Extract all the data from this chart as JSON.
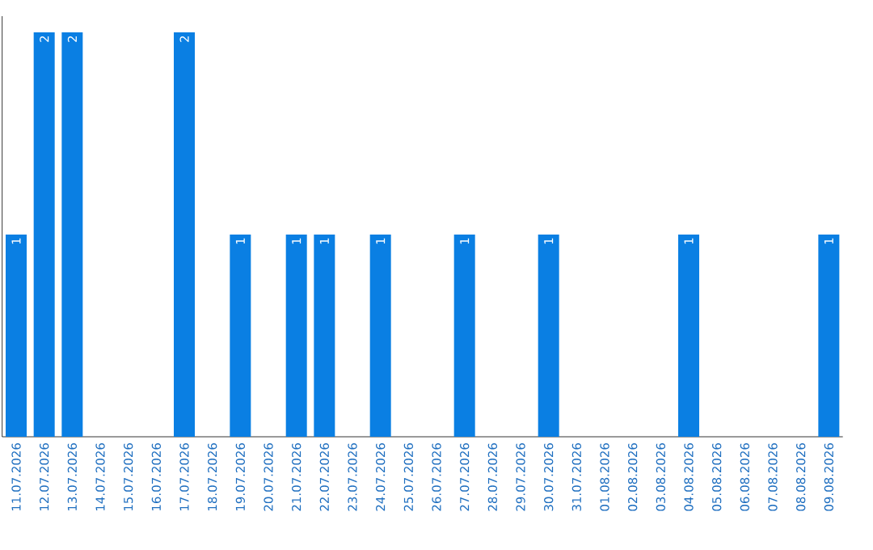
{
  "chart_data": {
    "type": "bar",
    "categories": [
      "11.07.2026",
      "12.07.2026",
      "13.07.2026",
      "14.07.2026",
      "15.07.2026",
      "16.07.2026",
      "17.07.2026",
      "18.07.2026",
      "19.07.2026",
      "20.07.2026",
      "21.07.2026",
      "22.07.2026",
      "23.07.2026",
      "24.07.2026",
      "25.07.2026",
      "26.07.2026",
      "27.07.2026",
      "28.07.2026",
      "29.07.2026",
      "30.07.2026",
      "31.07.2026",
      "01.08.2026",
      "02.08.2026",
      "03.08.2026",
      "04.08.2026",
      "05.08.2026",
      "06.08.2026",
      "07.08.2026",
      "08.08.2026",
      "09.08.2026"
    ],
    "values": [
      1,
      2,
      2,
      0,
      0,
      0,
      2,
      0,
      1,
      0,
      1,
      1,
      0,
      1,
      0,
      0,
      1,
      0,
      0,
      1,
      0,
      0,
      0,
      0,
      1,
      0,
      0,
      0,
      0,
      1
    ],
    "value_labels": [
      "1",
      "2",
      "2",
      null,
      null,
      null,
      "2",
      null,
      "1",
      null,
      "1",
      "1",
      null,
      "1",
      null,
      null,
      "1",
      null,
      null,
      "1",
      null,
      null,
      null,
      null,
      "1",
      null,
      null,
      null,
      null,
      "1"
    ],
    "color": "#0a7fe3"
  }
}
